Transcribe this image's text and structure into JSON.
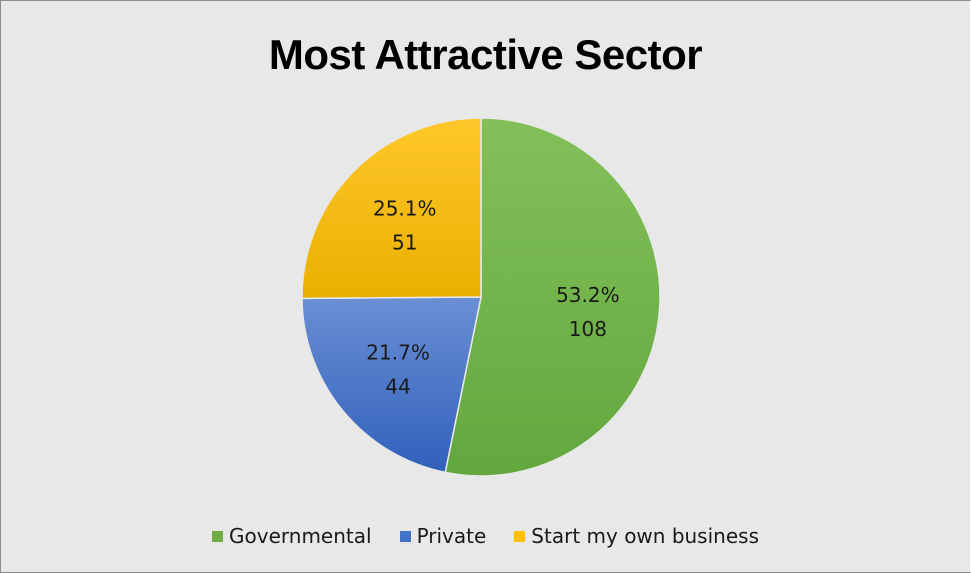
{
  "chart_data": {
    "type": "pie",
    "title": "Most Attractive Sector",
    "categories": [
      "Governmental",
      "Private",
      "Start my own business"
    ],
    "values": [
      108,
      44,
      51
    ],
    "percent_labels": [
      "53.2%",
      "21.7%",
      "25.1%"
    ],
    "value_labels": [
      "108",
      "44",
      "51"
    ],
    "colors": [
      "#70ad47",
      "#4472c4",
      "#ffc000"
    ],
    "legend_position": "bottom",
    "start_angle_deg": 0,
    "direction": "clockwise"
  }
}
